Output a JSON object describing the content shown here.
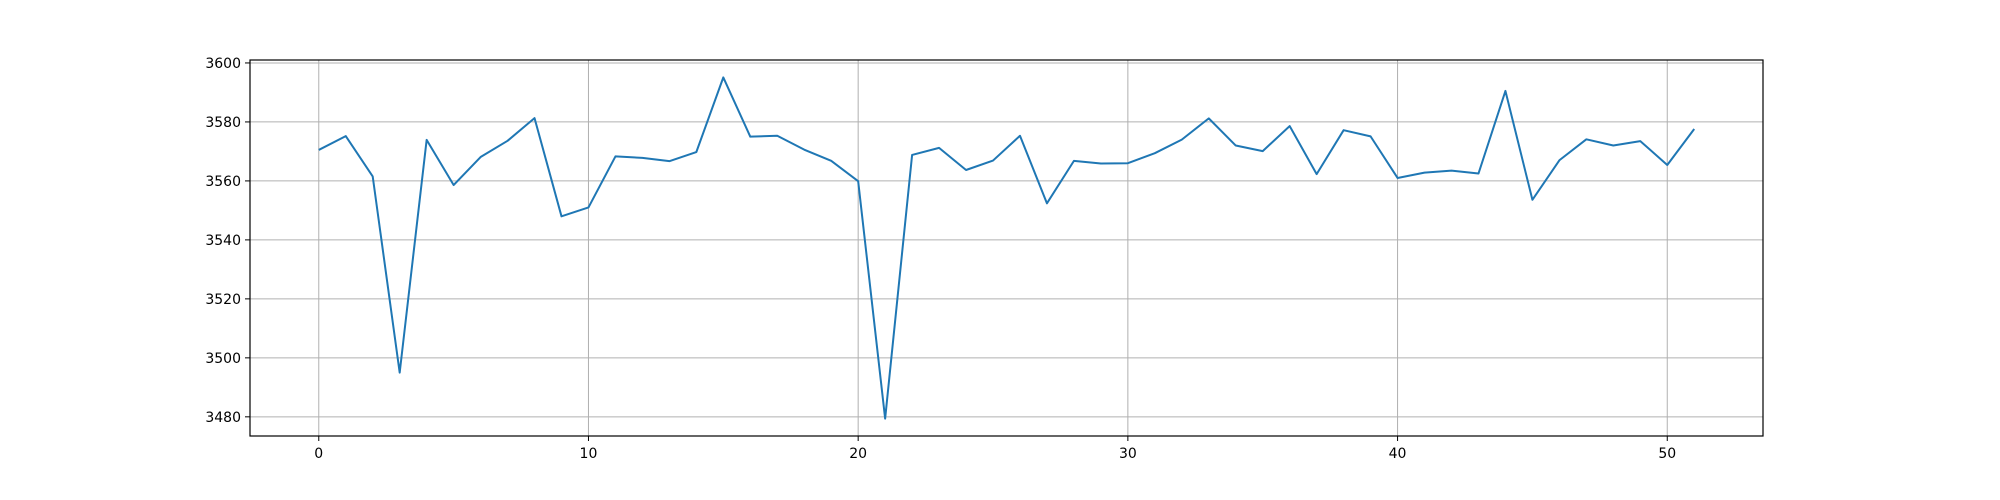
{
  "chart_data": {
    "type": "line",
    "title": "",
    "xlabel": "",
    "ylabel": "",
    "xlim": [
      -2.55,
      53.55
    ],
    "ylim": [
      3473.5,
      3601.0
    ],
    "grid": true,
    "xticks": [
      0,
      10,
      20,
      30,
      40,
      50
    ],
    "yticks": [
      3480,
      3500,
      3520,
      3540,
      3560,
      3580,
      3600
    ],
    "line_color": "#1f77b4",
    "series": [
      {
        "x": [
          0,
          1,
          2,
          3,
          4,
          5,
          6,
          7,
          8,
          9,
          10,
          11,
          12,
          13,
          14,
          15,
          16,
          17,
          18,
          19,
          20,
          21,
          22,
          23,
          24,
          25,
          26,
          27,
          28,
          29,
          30,
          31,
          32,
          33,
          34,
          35,
          36,
          37,
          38,
          39,
          40,
          41,
          42,
          43,
          44,
          45,
          46,
          47,
          48,
          49,
          50,
          51
        ],
        "values": [
          3570.5,
          3575.2,
          3561.5,
          3495.0,
          3573.9,
          3558.6,
          3568.1,
          3573.6,
          3581.3,
          3548.0,
          3551.0,
          3568.3,
          3567.8,
          3566.7,
          3569.8,
          3595.1,
          3575.0,
          3575.3,
          3570.6,
          3566.8,
          3559.9,
          3479.4,
          3568.8,
          3571.2,
          3563.7,
          3566.9,
          3575.3,
          3552.4,
          3566.8,
          3565.9,
          3566.0,
          3569.4,
          3574.0,
          3581.2,
          3572.0,
          3570.1,
          3578.6,
          3562.3,
          3577.2,
          3575.1,
          3561.0,
          3562.8,
          3563.5,
          3562.5,
          3590.5,
          3553.6,
          3567.0,
          3574.1,
          3572.0,
          3573.5,
          3565.4,
          3577.6
        ]
      }
    ]
  }
}
